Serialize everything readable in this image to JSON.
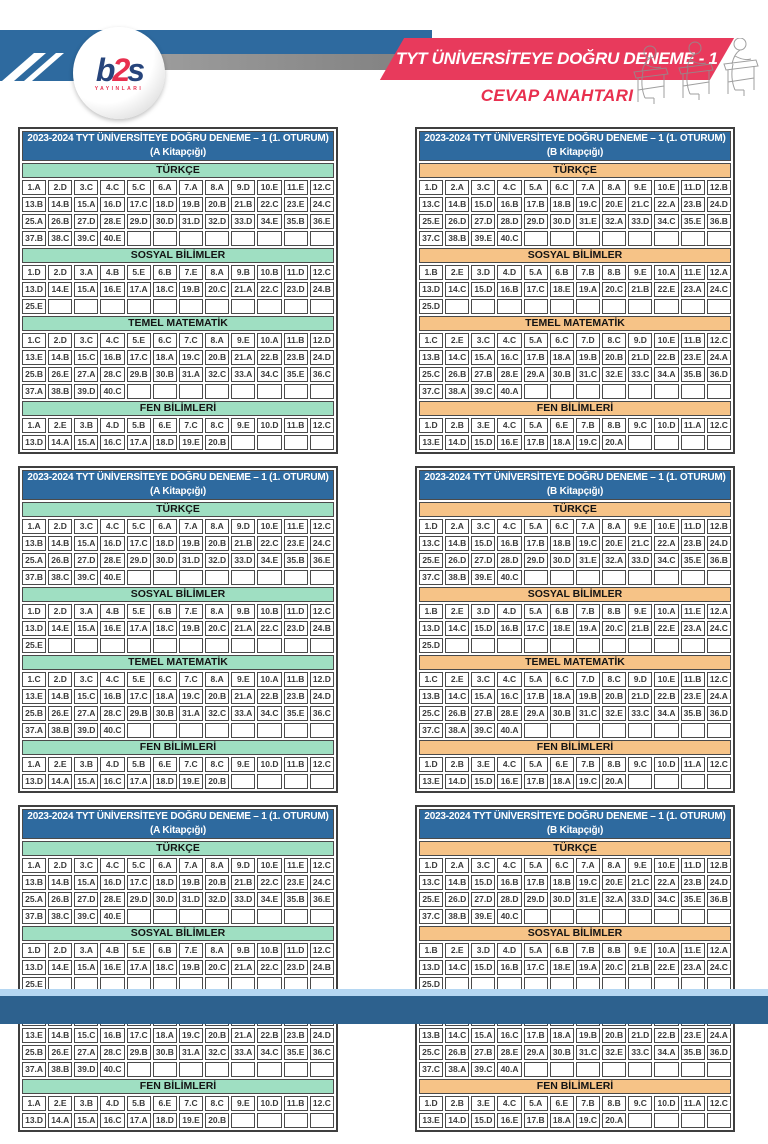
{
  "header": {
    "banner_title": "TYT ÜNİVERSİTEYE DOĞRU DENEME - 1",
    "banner_subtitle": "CEVAP ANAHTARI",
    "logo_brand_b": "b",
    "logo_brand_2": "2",
    "logo_brand_s": "s",
    "logo_sub": "YAYINLARI"
  },
  "colors": {
    "table_header_blue": "#2e6a9f",
    "booklet_a_accent": "#9fdfc2",
    "booklet_b_accent": "#f6c387",
    "banner_red": "#e83a5c",
    "footer_dark_blue": "#2d618e",
    "footer_light_blue": "#b5d7f2"
  },
  "answer_key": {
    "table_title": "2023-2024 TYT ÜNİVERSİTEYE DOĞRU DENEME – 1 (1. OTURUM)",
    "copies": 3,
    "columns_per_row": 12,
    "booklets": [
      {
        "code": "A",
        "name": "(A Kitapçığı)",
        "section_color": "#9fdfc2",
        "sections": [
          {
            "label": "TÜRKÇE",
            "answers": [
              "A",
              "D",
              "C",
              "C",
              "C",
              "A",
              "A",
              "A",
              "D",
              "E",
              "E",
              "C",
              "B",
              "B",
              "A",
              "D",
              "C",
              "D",
              "B",
              "B",
              "B",
              "C",
              "E",
              "C",
              "A",
              "B",
              "D",
              "E",
              "D",
              "D",
              "D",
              "D",
              "D",
              "E",
              "B",
              "E",
              "B",
              "C",
              "C",
              "E"
            ]
          },
          {
            "label": "SOSYAL BİLİMLER",
            "answers": [
              "D",
              "D",
              "A",
              "B",
              "E",
              "B",
              "E",
              "A",
              "B",
              "B",
              "D",
              "C",
              "D",
              "E",
              "A",
              "E",
              "A",
              "C",
              "B",
              "C",
              "A",
              "C",
              "D",
              "B",
              "E"
            ]
          },
          {
            "label": "TEMEL MATEMATİK",
            "answers": [
              "C",
              "D",
              "C",
              "C",
              "E",
              "C",
              "C",
              "A",
              "E",
              "A",
              "B",
              "D",
              "E",
              "B",
              "C",
              "B",
              "C",
              "A",
              "C",
              "B",
              "A",
              "B",
              "B",
              "D",
              "B",
              "E",
              "A",
              "C",
              "B",
              "B",
              "A",
              "C",
              "A",
              "C",
              "E",
              "C",
              "A",
              "B",
              "D",
              "C"
            ]
          },
          {
            "label": "FEN BİLİMLERİ",
            "answers": [
              "A",
              "E",
              "B",
              "D",
              "B",
              "E",
              "C",
              "C",
              "E",
              "D",
              "B",
              "C",
              "D",
              "A",
              "A",
              "C",
              "A",
              "D",
              "E",
              "B"
            ]
          }
        ]
      },
      {
        "code": "B",
        "name": "(B Kitapçığı)",
        "section_color": "#f6c387",
        "sections": [
          {
            "label": "TÜRKÇE",
            "answers": [
              "D",
              "A",
              "C",
              "C",
              "A",
              "C",
              "A",
              "A",
              "E",
              "E",
              "D",
              "B",
              "C",
              "B",
              "D",
              "B",
              "B",
              "B",
              "C",
              "E",
              "C",
              "A",
              "B",
              "D",
              "E",
              "D",
              "D",
              "D",
              "D",
              "D",
              "E",
              "A",
              "D",
              "C",
              "E",
              "B",
              "C",
              "B",
              "E",
              "C"
            ]
          },
          {
            "label": "SOSYAL BİLİMLER",
            "answers": [
              "B",
              "E",
              "D",
              "D",
              "A",
              "B",
              "B",
              "B",
              "E",
              "A",
              "E",
              "A",
              "D",
              "C",
              "D",
              "B",
              "C",
              "E",
              "A",
              "C",
              "B",
              "E",
              "A",
              "C",
              "D"
            ]
          },
          {
            "label": "TEMEL MATEMATİK",
            "answers": [
              "C",
              "E",
              "C",
              "C",
              "A",
              "C",
              "D",
              "C",
              "D",
              "E",
              "B",
              "C",
              "B",
              "C",
              "A",
              "C",
              "B",
              "A",
              "B",
              "B",
              "D",
              "B",
              "E",
              "A",
              "C",
              "B",
              "B",
              "E",
              "A",
              "B",
              "C",
              "E",
              "C",
              "A",
              "B",
              "D",
              "C",
              "A",
              "C",
              "A"
            ]
          },
          {
            "label": "FEN BİLİMLERİ",
            "answers": [
              "D",
              "B",
              "E",
              "C",
              "A",
              "E",
              "B",
              "B",
              "C",
              "D",
              "A",
              "C",
              "E",
              "D",
              "D",
              "E",
              "B",
              "A",
              "C",
              "A"
            ]
          }
        ]
      }
    ]
  }
}
